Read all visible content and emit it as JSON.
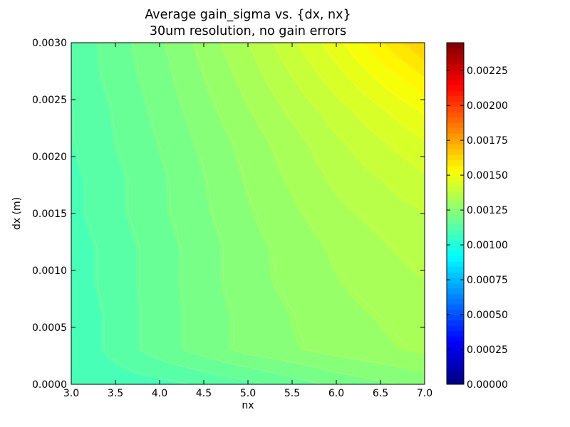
{
  "chart_data": {
    "type": "heatmap",
    "title": "Average gain_sigma vs. {dx, nx}",
    "subtitle": "30um resolution, no gain errors",
    "xlabel": "nx",
    "ylabel": "dx (m)",
    "xlim": [
      3.0,
      7.0
    ],
    "ylim": [
      0.0,
      0.003
    ],
    "x_ticks": [
      "3.0",
      "3.5",
      "4.0",
      "4.5",
      "5.0",
      "5.5",
      "6.0",
      "6.5",
      "7.0"
    ],
    "y_ticks": [
      "0.0000",
      "0.0005",
      "0.0010",
      "0.0015",
      "0.0020",
      "0.0025",
      "0.0030"
    ],
    "x": [
      3,
      4,
      5,
      6,
      7
    ],
    "y": [
      0.0,
      0.0003,
      0.0006,
      0.0009,
      0.0012,
      0.0015,
      0.0018,
      0.0021,
      0.0024,
      0.0027,
      0.003
    ],
    "z": [
      [
        0.00108,
        0.0011,
        0.00114,
        0.0012,
        0.00124
      ],
      [
        0.00108,
        0.00117,
        0.00124,
        0.00128,
        0.00131
      ],
      [
        0.00108,
        0.00117,
        0.00124,
        0.00129,
        0.00132
      ],
      [
        0.00109,
        0.00117,
        0.00125,
        0.0013,
        0.00134
      ],
      [
        0.00109,
        0.00117,
        0.00125,
        0.00131,
        0.00136
      ],
      [
        0.0011,
        0.00118,
        0.00126,
        0.00133,
        0.00138
      ],
      [
        0.0011,
        0.00118,
        0.00127,
        0.00135,
        0.00141
      ],
      [
        0.00111,
        0.00119,
        0.00128,
        0.00137,
        0.00145
      ],
      [
        0.00111,
        0.0012,
        0.0013,
        0.0014,
        0.0015
      ],
      [
        0.00112,
        0.00121,
        0.00132,
        0.00144,
        0.00157
      ],
      [
        0.00112,
        0.00122,
        0.00134,
        0.00148,
        0.00165
      ]
    ],
    "colormap": "jet",
    "colorbar": {
      "min": 0.0,
      "max": 0.00245,
      "ticks": [
        0.0,
        0.00025,
        0.0005,
        0.00075,
        0.001,
        0.00125,
        0.0015,
        0.00175,
        0.002,
        0.00225
      ],
      "tick_labels": [
        "0.00000",
        "0.00025",
        "0.00050",
        "0.00075",
        "0.00100",
        "0.00125",
        "0.00150",
        "0.00175",
        "0.00200",
        "0.00225"
      ]
    },
    "grid": false
  }
}
